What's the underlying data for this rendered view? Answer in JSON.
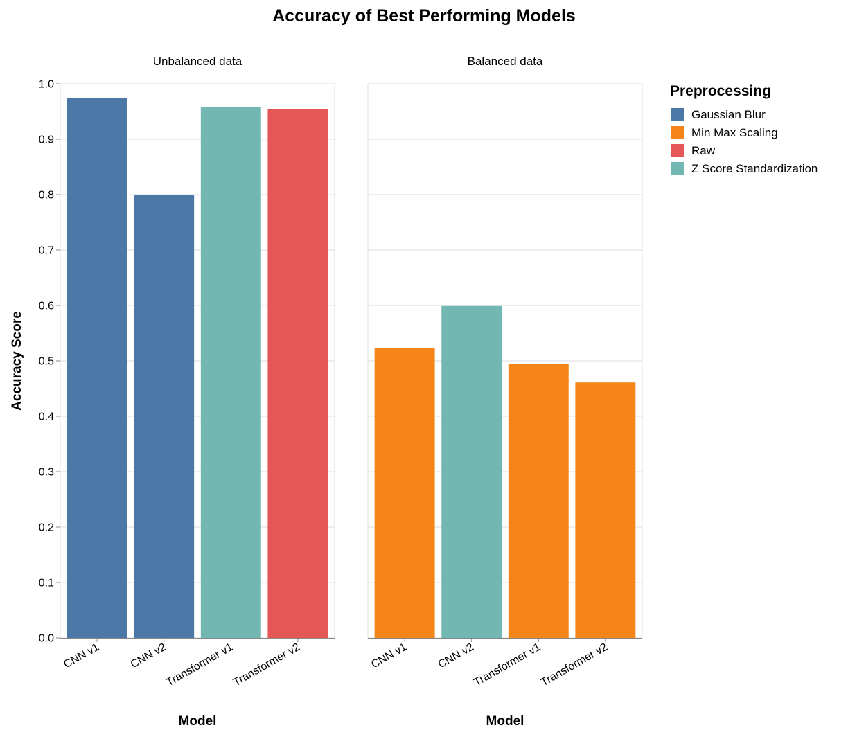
{
  "chart_data": {
    "type": "bar",
    "title": "Accuracy of Best Performing Models",
    "ylabel": "Accuracy Score",
    "xlabel": "Model",
    "ylim": [
      0,
      1
    ],
    "yticks": [
      "0.0",
      "0.1",
      "0.2",
      "0.3",
      "0.4",
      "0.5",
      "0.6",
      "0.7",
      "0.8",
      "0.9",
      "1.0"
    ],
    "grid": true,
    "legend": {
      "title": "Preprocessing",
      "placement": "right",
      "items": [
        {
          "label": "Gaussian Blur",
          "color": "#4c78a8"
        },
        {
          "label": "Min Max Scaling",
          "color": "#f58518"
        },
        {
          "label": "Raw",
          "color": "#e45756"
        },
        {
          "label": "Z Score Standardization",
          "color": "#72b7b2"
        }
      ]
    },
    "facets": [
      {
        "title": "Unbalanced data",
        "categories": [
          "CNN v1",
          "CNN v2",
          "Transformer v1",
          "Transformer v2"
        ],
        "values": [
          0.975,
          0.8,
          0.958,
          0.954
        ],
        "preprocessing": [
          "Gaussian Blur",
          "Gaussian Blur",
          "Z Score Standardization",
          "Raw"
        ]
      },
      {
        "title": "Balanced data",
        "categories": [
          "CNN v1",
          "CNN v2",
          "Transformer v1",
          "Transformer v2"
        ],
        "values": [
          0.523,
          0.599,
          0.495,
          0.461
        ],
        "preprocessing": [
          "Min Max Scaling",
          "Z Score Standardization",
          "Min Max Scaling",
          "Min Max Scaling"
        ]
      }
    ]
  }
}
